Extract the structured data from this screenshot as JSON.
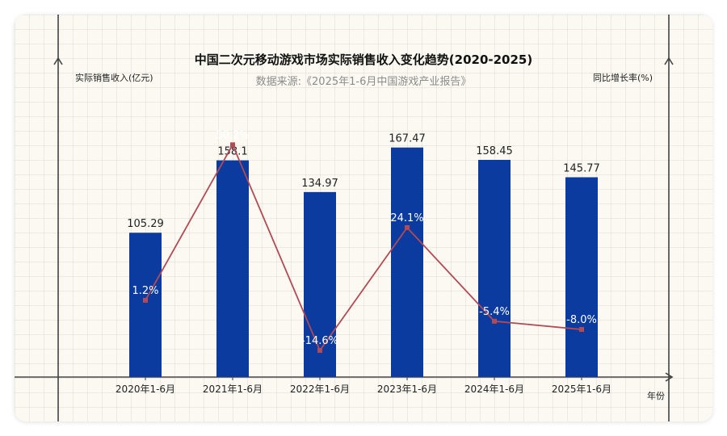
{
  "chart_data": {
    "type": "bar",
    "title": "中国二次元移动游戏市场实际销售收入变化趋势(2020-2025)",
    "subtitle": "数据来源:《2025年1-6月中国游戏产业报告》",
    "ylabel_left": "实际销售收入(亿元)",
    "ylabel_right": "同比增长率(%)",
    "xlabel": "年份",
    "categories": [
      "2020年1-6月",
      "2021年1-6月",
      "2022年1-6月",
      "2023年1-6月",
      "2024年1-6月",
      "2025年1-6月"
    ],
    "series": [
      {
        "type": "bar",
        "values": [
          105.29,
          158.1,
          134.97,
          167.47,
          158.45,
          145.77
        ]
      },
      {
        "type": "line",
        "values": [
          1.2,
          50.2,
          -14.6,
          24.1,
          -5.4,
          -8.0
        ],
        "labels": [
          "1.2%",
          "50.2%",
          "-14.6%",
          "24.1%",
          "-5.4%",
          "-8.0%"
        ]
      }
    ],
    "ylim_left": [
      0,
      170
    ],
    "ylim_right": [
      -23,
      77
    ],
    "colors": {
      "bar": "#0b3b9e",
      "line": "#b34a55",
      "axis": "#444444",
      "background": "#fbf9f1"
    },
    "grid": true
  }
}
